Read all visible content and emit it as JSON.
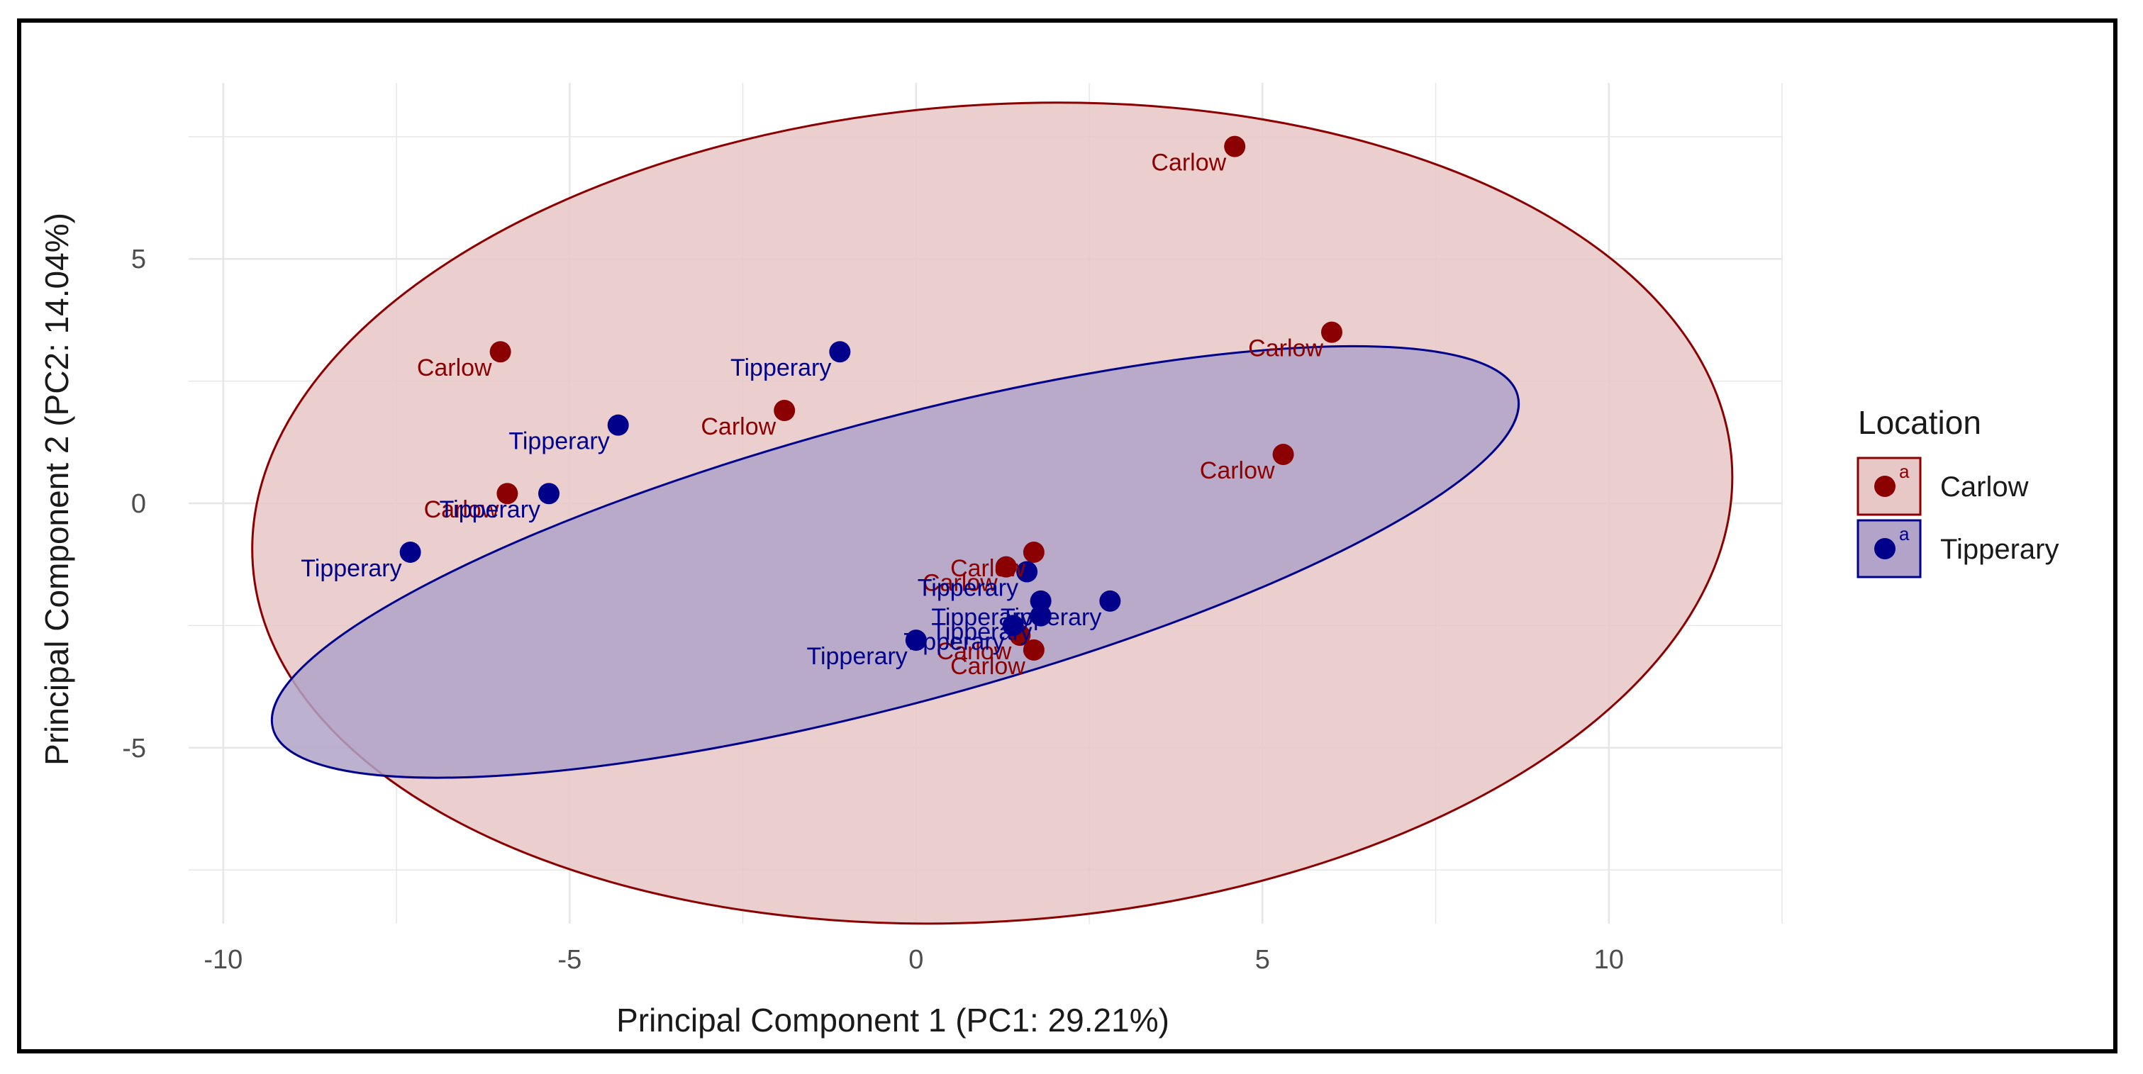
{
  "chart_data": {
    "type": "scatter",
    "title": "",
    "xlabel": "Principal Component 1 (PC1: 29.21%)",
    "ylabel": "Principal Component 2 (PC2: 14.04%)",
    "xlim": [
      -10.5,
      12.5
    ],
    "ylim": [
      -8.6,
      8.6
    ],
    "x_ticks": [
      -10,
      -5,
      0,
      5,
      10
    ],
    "y_ticks": [
      -5,
      0,
      5
    ],
    "x_tick_labels": [
      "-10",
      "-5",
      "0",
      "5",
      "10"
    ],
    "y_tick_labels": [
      "-5",
      "0",
      "5"
    ],
    "grid": true,
    "legend": {
      "title": "Location",
      "placement": "right",
      "entries": [
        {
          "label": "Carlow",
          "key_glyph": "a"
        },
        {
          "label": "Tipperary",
          "key_glyph": "a"
        }
      ]
    },
    "series": [
      {
        "name": "Carlow",
        "color": "#8b0000",
        "fill": "#e8c7c7",
        "ellipse": {
          "cx": 1.1,
          "cy": -0.2,
          "rx": 10.7,
          "ry": 8.35,
          "angle": -4
        },
        "points": [
          {
            "x": 4.6,
            "y": 7.3,
            "label": "Carlow"
          },
          {
            "x": 6.0,
            "y": 3.5,
            "label": "Carlow"
          },
          {
            "x": 5.3,
            "y": 1.0,
            "label": "Carlow"
          },
          {
            "x": -6.0,
            "y": 3.1,
            "label": "Carlow"
          },
          {
            "x": -1.9,
            "y": 1.9,
            "label": "Carlow"
          },
          {
            "x": -5.9,
            "y": 0.2,
            "label": "Carlow"
          },
          {
            "x": 1.7,
            "y": -1.0,
            "label": "Carlow"
          },
          {
            "x": 1.5,
            "y": -2.7,
            "label": "Carlow"
          },
          {
            "x": 1.7,
            "y": -3.0,
            "label": "Carlow"
          },
          {
            "x": 1.3,
            "y": -1.3,
            "label": "Carlow"
          }
        ]
      },
      {
        "name": "Tipperary",
        "color": "#00008b",
        "fill": "#b2a3c8",
        "ellipse": {
          "cx": -0.3,
          "cy": -1.2,
          "rx": 9.3,
          "ry": 2.9,
          "angle": -15
        },
        "points": [
          {
            "x": -1.1,
            "y": 3.1,
            "label": "Tipperary"
          },
          {
            "x": -4.3,
            "y": 1.6,
            "label": "Tipperary"
          },
          {
            "x": -5.3,
            "y": 0.2,
            "label": "Tipperary"
          },
          {
            "x": -7.3,
            "y": -1.0,
            "label": "Tipperary"
          },
          {
            "x": 0.0,
            "y": -2.8,
            "label": "Tipperary"
          },
          {
            "x": 1.6,
            "y": -1.4,
            "label": "Tipperary"
          },
          {
            "x": 1.8,
            "y": -2.0,
            "label": "Tipperary"
          },
          {
            "x": 2.8,
            "y": -2.0,
            "label": "Tipperary"
          },
          {
            "x": 1.8,
            "y": -2.3,
            "label": "Tipperary"
          },
          {
            "x": 1.4,
            "y": -2.5,
            "label": "Tipperary"
          }
        ]
      }
    ]
  }
}
